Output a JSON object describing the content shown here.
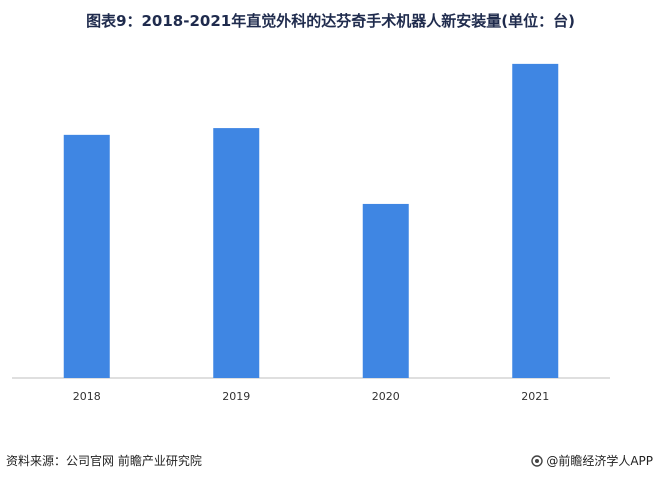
{
  "chart_data": {
    "type": "bar",
    "title": "图表9：2018-2021年直觉外科的达芬奇手术机器人新安装量(单位：台)",
    "categories": [
      "2018",
      "2019",
      "2020",
      "2021"
    ],
    "values": [
      1151,
      1183,
      824,
      1487
    ],
    "ylim": [
      0,
      1600
    ],
    "xlabel": "",
    "ylabel": "",
    "grid": false,
    "legend": "none",
    "bar_color": "#3f86e3",
    "axis_color": "#bfbfbf"
  },
  "footer": {
    "source": "资料来源：公司官网 前瞻产业研究院",
    "brand": "@前瞻经济学人APP"
  }
}
